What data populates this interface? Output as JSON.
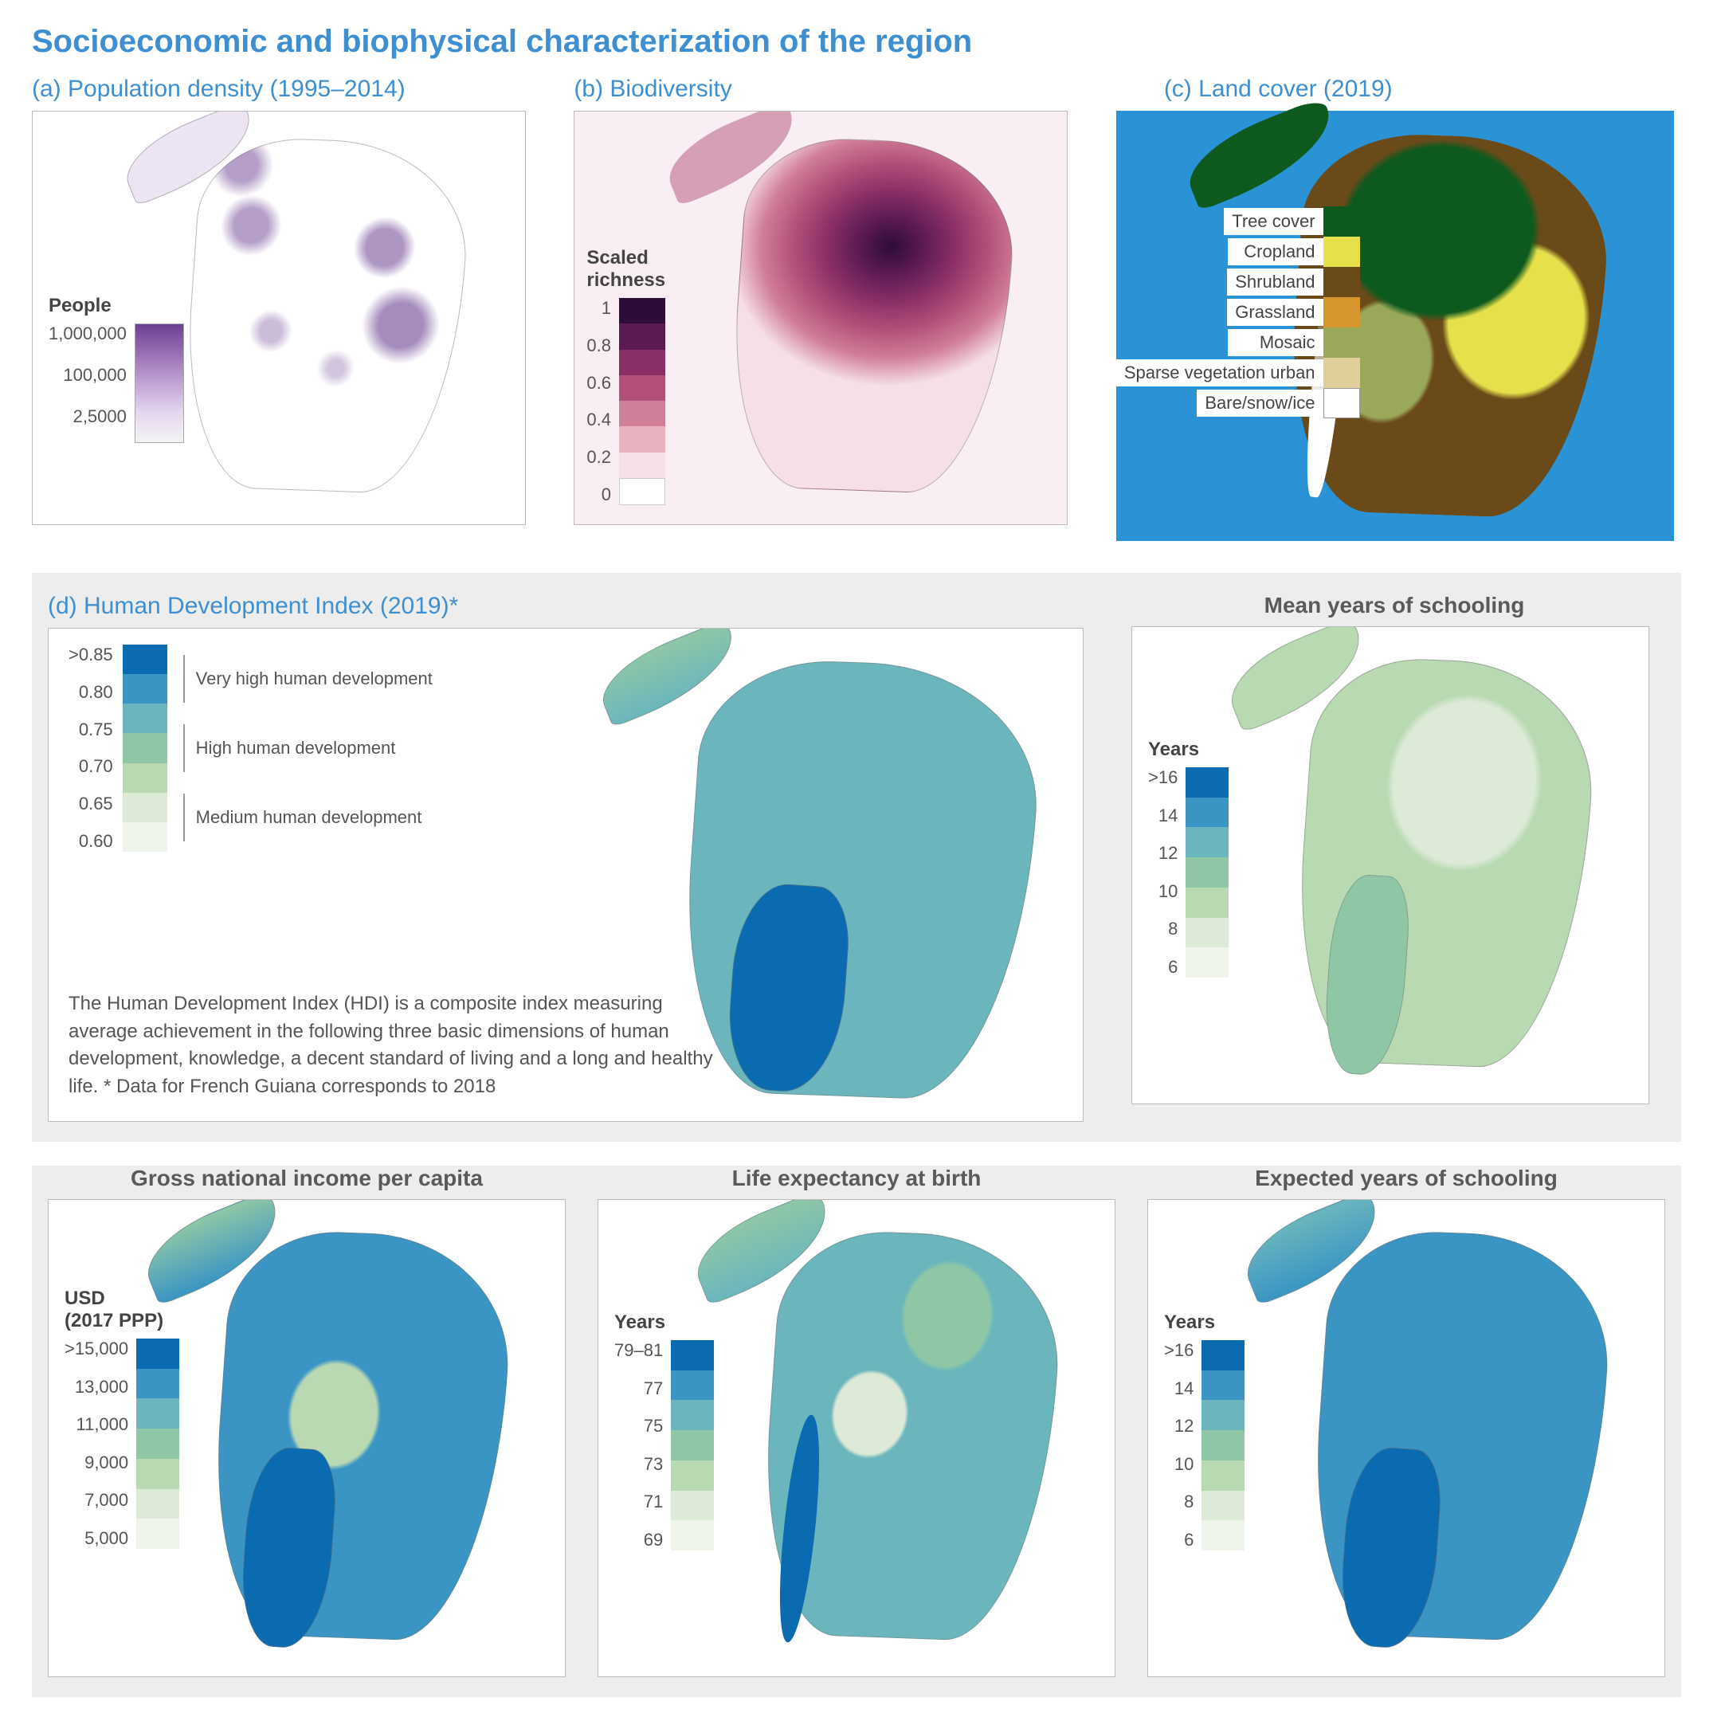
{
  "colors": {
    "title_blue": "#3d8fd1",
    "body_text": "#555555",
    "panel_border": "#bbbbbb",
    "grey_bg": "#ededed",
    "ocean_blue": "#2a93d6"
  },
  "main_title": "Socioeconomic and biophysical characterization of the region",
  "panel_a": {
    "title": "(a) Population density (1995–2014)",
    "legend_title": "People",
    "ticks": [
      "1,000,000",
      "100,000",
      "2,5000"
    ],
    "colors": [
      "#6b3f91",
      "#b38fc9",
      "#e4d6ee",
      "#f4f4f4"
    ],
    "map_fill": "#ffffff",
    "map_outline": "#888888",
    "dot_color": "#7d4aa6"
  },
  "panel_b": {
    "title": "(b) Biodiversity",
    "legend_title": "Scaled\nrichness",
    "ticks": [
      "1",
      "0.8",
      "0.6",
      "0.4",
      "0.2",
      "0"
    ],
    "colors": [
      "#2d0b3a",
      "#5c1a54",
      "#8a2f66",
      "#b25079",
      "#d17e98",
      "#e8b2bf",
      "#f6e0e6",
      "#ffffff"
    ],
    "bg_tint": "#f8eef3"
  },
  "panel_c": {
    "title": "(c) Land cover (2019)",
    "ocean": "#2a93d6",
    "legend": [
      {
        "label": "Tree cover",
        "color": "#0e5a1e"
      },
      {
        "label": "Cropland",
        "color": "#e6e04a"
      },
      {
        "label": "Shrubland",
        "color": "#6b4a1a"
      },
      {
        "label": "Grassland",
        "color": "#d6952d"
      },
      {
        "label": "Mosaic",
        "color": "#9aa85a"
      },
      {
        "label": "Sparse vegetation urban",
        "color": "#e0cf9a"
      },
      {
        "label": "Bare/snow/ice",
        "color": "#ffffff"
      }
    ]
  },
  "panel_d": {
    "title": "(d) Human Development Index (2019)*",
    "ticks": [
      ">0.85",
      "0.80",
      "0.75",
      "0.70",
      "0.65",
      "0.60"
    ],
    "bands": [
      {
        "label": "Very high human development"
      },
      {
        "label": "High human development"
      },
      {
        "label": "Medium human development"
      }
    ],
    "colors": [
      "#0a6bb0",
      "#3a95c4",
      "#6bb6bd",
      "#8fc7a6",
      "#b9d9b3",
      "#dcead7",
      "#f0f5ec"
    ],
    "description": "The Human Development Index (HDI) is a composite index measuring average achievement in the following three basic dimensions of human development, knowledge, a decent standard of living and a long and healthy life. * Data for French Guiana corresponds to 2018"
  },
  "panel_schooling_mean": {
    "title": "Mean years of schooling",
    "legend_title": "Years",
    "ticks": [
      ">16",
      "14",
      "12",
      "10",
      "8",
      "6"
    ],
    "colors": [
      "#0a6bb0",
      "#3a95c4",
      "#6bb6bd",
      "#8fc7a6",
      "#b9d9b3",
      "#dcead7",
      "#f0f5ec"
    ]
  },
  "panel_gni": {
    "title": "Gross national income per capita",
    "legend_title": "USD\n(2017 PPP)",
    "ticks": [
      ">15,000",
      "13,000",
      "11,000",
      "9,000",
      "7,000",
      "5,000"
    ],
    "colors": [
      "#0a6bb0",
      "#3a95c4",
      "#6bb6bd",
      "#8fc7a6",
      "#b9d9b3",
      "#dcead7",
      "#f0f5ec"
    ]
  },
  "panel_life": {
    "title": "Life expectancy at birth",
    "legend_title": "Years",
    "ticks": [
      "79–81",
      "77",
      "75",
      "73",
      "71",
      "69"
    ],
    "colors": [
      "#0a6bb0",
      "#3a95c4",
      "#6bb6bd",
      "#8fc7a6",
      "#b9d9b3",
      "#dcead7",
      "#f0f5ec"
    ]
  },
  "panel_schooling_exp": {
    "title": "Expected years of schooling",
    "legend_title": "Years",
    "ticks": [
      ">16",
      "14",
      "12",
      "10",
      "8",
      "6"
    ],
    "colors": [
      "#0a6bb0",
      "#3a95c4",
      "#6bb6bd",
      "#8fc7a6",
      "#b9d9b3",
      "#dcead7",
      "#f0f5ec"
    ]
  }
}
